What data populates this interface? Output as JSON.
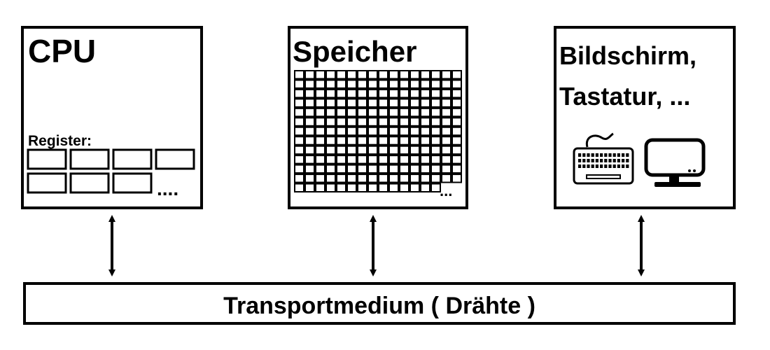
{
  "colors": {
    "stroke": "#000000",
    "background": "#ffffff"
  },
  "cpu": {
    "title": "CPU",
    "register_label": "Register:",
    "register_ellipsis": "....",
    "register_count": 7
  },
  "memory": {
    "title": "Speicher",
    "grid_rows": 13,
    "grid_cols": 16,
    "ellipsis": "..."
  },
  "io": {
    "title_line1": "Bildschirm,",
    "title_line2": "Tastatur, ...",
    "icons": [
      "keyboard-icon",
      "monitor-icon"
    ]
  },
  "bus": {
    "label": "Transportmedium ( Drähte )"
  },
  "arrows": [
    "cpu-bus-arrow",
    "memory-bus-arrow",
    "io-bus-arrow"
  ]
}
